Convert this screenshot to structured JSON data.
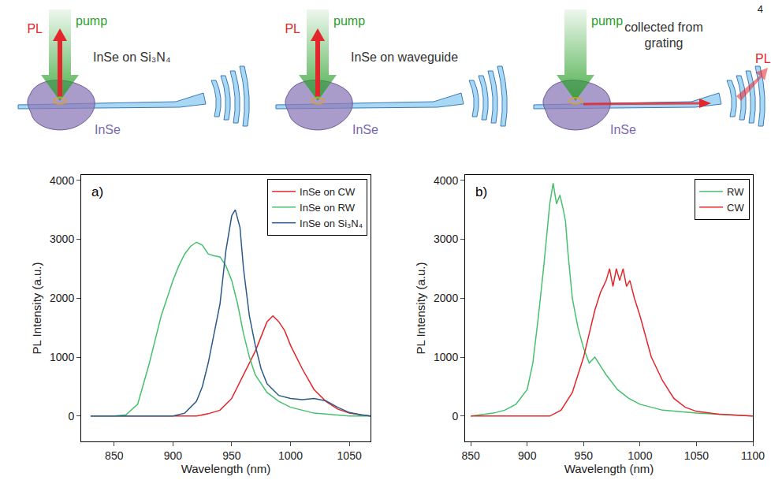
{
  "page": {
    "number": "4"
  },
  "schematics": [
    {
      "pl": "PL",
      "pump": "pump",
      "caption": "InSe on Si₃N₄",
      "flake": "InSe"
    },
    {
      "pl": "PL",
      "pump": "pump",
      "caption": "InSe on waveguide",
      "flake": "InSe"
    },
    {
      "pump": "pump",
      "caption_lines": [
        "collected from",
        "grating"
      ],
      "pl": "PL",
      "flake": "InSe"
    }
  ],
  "chart_data": [
    {
      "type": "line",
      "panel": "a)",
      "x_label": "Wavelength (nm)",
      "y_label": "PL Intensity (a.u.)",
      "xlim": [
        822,
        1068
      ],
      "ylim": [
        -430,
        4090
      ],
      "xticks": [
        850,
        900,
        950,
        1000,
        1050
      ],
      "yticks": [
        0,
        1000,
        2000,
        3000,
        4000
      ],
      "grid": false,
      "legend": "top right",
      "series": [
        {
          "name": "InSe on CW",
          "color": "#e3262b",
          "x": [
            830,
            860,
            900,
            920,
            930,
            940,
            950,
            960,
            965,
            970,
            975,
            980,
            985,
            990,
            995,
            1000,
            1005,
            1010,
            1020,
            1030,
            1040,
            1050,
            1060,
            1068
          ],
          "values": [
            0,
            0,
            0,
            0,
            40,
            100,
            300,
            700,
            900,
            1100,
            1350,
            1600,
            1700,
            1600,
            1450,
            1200,
            1000,
            800,
            450,
            250,
            120,
            50,
            20,
            0
          ]
        },
        {
          "name": "InSe on RW",
          "color": "#47c06e",
          "x": [
            830,
            850,
            860,
            870,
            875,
            880,
            885,
            890,
            895,
            900,
            905,
            910,
            915,
            920,
            925,
            930,
            935,
            940,
            945,
            950,
            955,
            960,
            965,
            970,
            980,
            990,
            1000,
            1020,
            1050,
            1068
          ],
          "values": [
            0,
            0,
            20,
            200,
            550,
            900,
            1300,
            1700,
            2000,
            2300,
            2550,
            2750,
            2880,
            2950,
            2900,
            2750,
            2720,
            2700,
            2550,
            2300,
            1900,
            1400,
            1000,
            700,
            400,
            250,
            150,
            50,
            0,
            0
          ]
        },
        {
          "name": "InSe on Si₃N₄",
          "color": "#2b5a8a",
          "x": [
            830,
            880,
            900,
            910,
            920,
            925,
            930,
            935,
            940,
            945,
            950,
            953,
            957,
            960,
            965,
            970,
            975,
            980,
            990,
            1000,
            1010,
            1020,
            1030,
            1040,
            1050,
            1060,
            1068
          ],
          "values": [
            0,
            0,
            0,
            50,
            250,
            500,
            900,
            1400,
            1900,
            2800,
            3400,
            3500,
            3200,
            2500,
            1700,
            1200,
            800,
            550,
            350,
            300,
            280,
            300,
            260,
            150,
            60,
            20,
            0
          ]
        }
      ]
    },
    {
      "type": "line",
      "panel": "b)",
      "x_label": "Wavelength (nm)",
      "y_label": "PL Intensity (a.u.)",
      "xlim": [
        845,
        1100
      ],
      "ylim": [
        -430,
        4090
      ],
      "xticks": [
        850,
        900,
        950,
        1000,
        1050,
        1100
      ],
      "yticks": [
        0,
        1000,
        2000,
        3000,
        4000
      ],
      "grid": false,
      "legend": "top right",
      "series": [
        {
          "name": "RW",
          "color": "#47c06e",
          "x": [
            850,
            870,
            880,
            890,
            900,
            905,
            910,
            915,
            920,
            923,
            926,
            929,
            932,
            934,
            936,
            940,
            945,
            950,
            955,
            960,
            965,
            970,
            980,
            990,
            1000,
            1020,
            1050,
            1080,
            1100
          ],
          "values": [
            0,
            50,
            100,
            200,
            450,
            900,
            1700,
            2600,
            3600,
            3950,
            3600,
            3750,
            3500,
            3300,
            2800,
            2000,
            1500,
            1150,
            900,
            1000,
            850,
            700,
            450,
            300,
            200,
            100,
            50,
            20,
            0
          ]
        },
        {
          "name": "CW",
          "color": "#e3262b",
          "x": [
            850,
            900,
            920,
            930,
            940,
            945,
            950,
            955,
            960,
            965,
            970,
            973,
            976,
            979,
            982,
            985,
            988,
            991,
            995,
            1000,
            1010,
            1020,
            1030,
            1040,
            1050,
            1070,
            1100
          ],
          "values": [
            0,
            0,
            0,
            100,
            400,
            700,
            1000,
            1400,
            1800,
            2100,
            2300,
            2500,
            2200,
            2500,
            2300,
            2500,
            2200,
            2300,
            2000,
            1700,
            1000,
            600,
            300,
            150,
            80,
            30,
            0
          ]
        }
      ]
    }
  ]
}
